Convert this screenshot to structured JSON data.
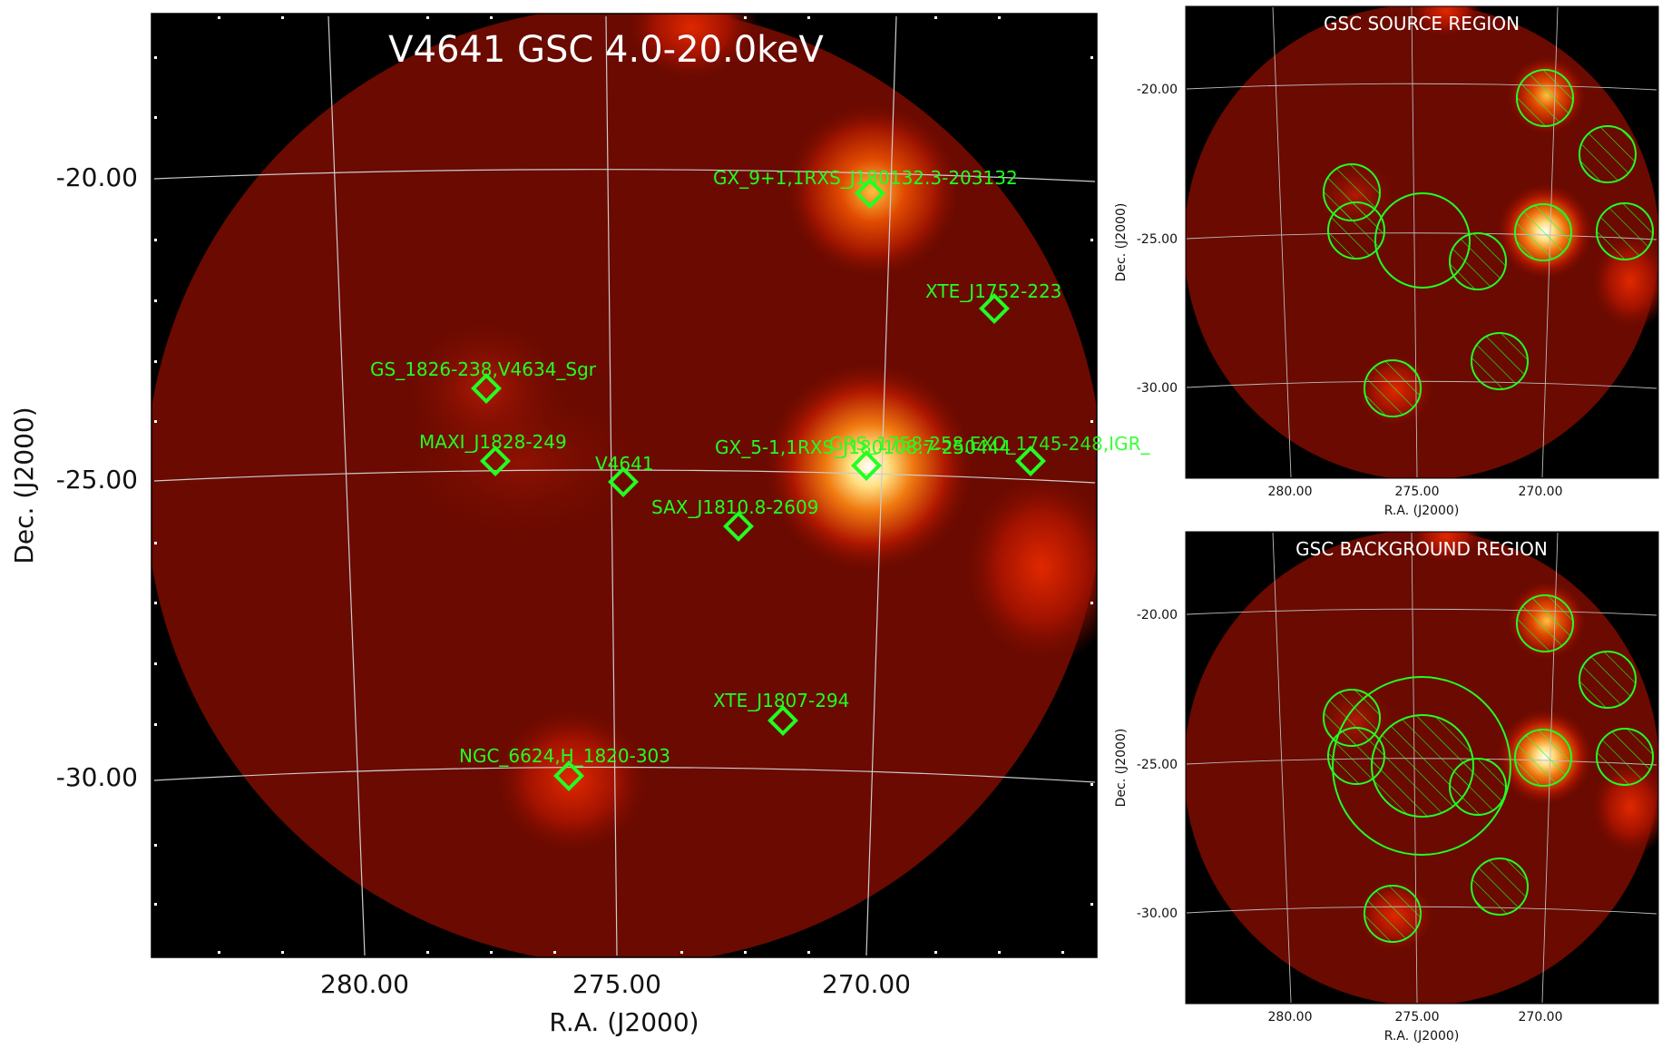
{
  "main": {
    "title": "V4641 GSC 4.0-20.0keV",
    "xlabel": "R.A. (J2000)",
    "ylabel": "Dec. (J2000)",
    "xticks": [
      "280.00",
      "275.00",
      "270.00"
    ],
    "yticks": [
      "-20.00",
      "-25.00",
      "-30.00"
    ],
    "sources": [
      {
        "name": "GX_9+1,1RXS_J180132.3-203132"
      },
      {
        "name": "XTE_J1752-223"
      },
      {
        "name": "GS_1826-238,V4634_Sgr"
      },
      {
        "name": "MAXI_J1828-249"
      },
      {
        "name": "V4641"
      },
      {
        "name": "GX_5-1,1RXS_J180108.7-250444"
      },
      {
        "name": "GRS_1758-258,EXO_1745-248,IGR_"
      },
      {
        "name": "SAX_J1810.8-2609"
      },
      {
        "name": "XTE_J1807-294"
      },
      {
        "name": "NGC_6624,H_1820-303"
      }
    ]
  },
  "source_panel": {
    "title": "GSC SOURCE REGION",
    "xlabel": "R.A. (J2000)",
    "ylabel": "Dec. (J2000)",
    "xticks": [
      "280.00",
      "275.00",
      "270.00"
    ],
    "yticks": [
      "-20.00",
      "-25.00",
      "-30.00"
    ]
  },
  "background_panel": {
    "title": "GSC BACKGROUND REGION",
    "xlabel": "R.A. (J2000)",
    "ylabel": "Dec. (J2000)",
    "xticks": [
      "280.00",
      "275.00",
      "270.00"
    ],
    "yticks": [
      "-20.00",
      "-25.00",
      "-30.00"
    ]
  },
  "colors": {
    "marker": "#22ff22",
    "grid": "#cccccc",
    "field": "#6a0a00"
  }
}
